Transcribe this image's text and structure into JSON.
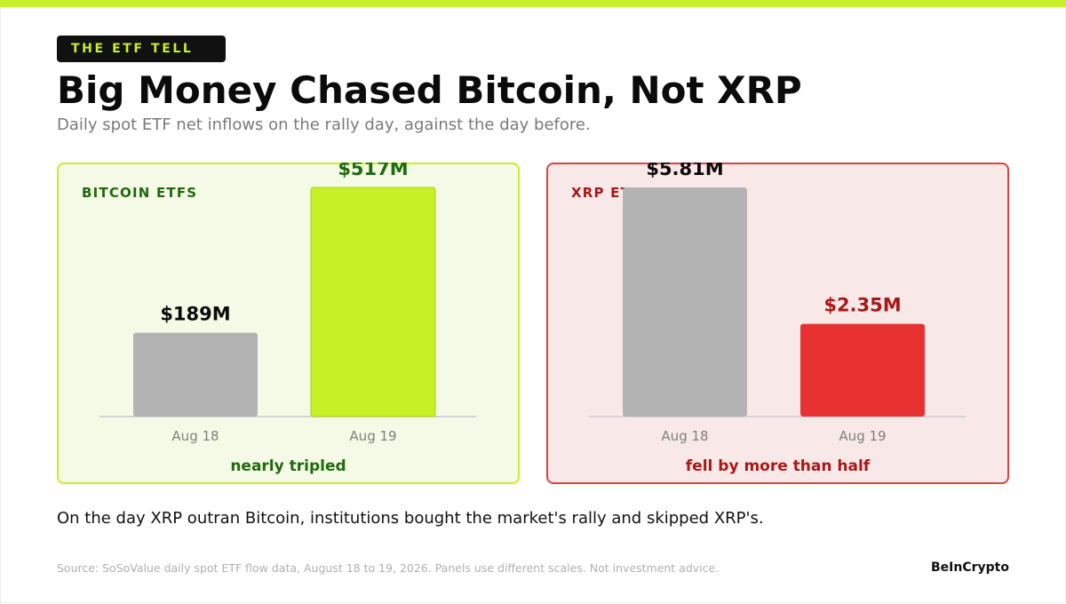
{
  "colors": {
    "accent": "#c8f026",
    "brand_bar": "#c8f026",
    "kicker_text": "#c8f026",
    "neutral_bar": "#b3b3b3",
    "btc_green": "#1e6b0d",
    "btc_panel_bg": "#f5fae6",
    "btc_panel_border": "#c8f026",
    "xrp_red": "#e83232",
    "xrp_dark_red": "#a81818",
    "xrp_panel_bg": "#f9e8e8",
    "xrp_panel_border": "#d64545"
  },
  "header": {
    "kicker": "THE ETF TELL",
    "title": "Big Money Chased Bitcoin, Not XRP",
    "subtitle": "Daily spot ETF net inflows on the rally day, against the day before."
  },
  "chart_data": [
    {
      "type": "bar",
      "panel_label": "BITCOIN ETFS",
      "categories": [
        "Aug 18",
        "Aug 19"
      ],
      "values": [
        189,
        517
      ],
      "value_labels": [
        "$189M",
        "$517M"
      ],
      "unit": "$M",
      "ylim": [
        0,
        517
      ],
      "note": "nearly tripled"
    },
    {
      "type": "bar",
      "panel_label": "XRP ETFS",
      "categories": [
        "Aug 18",
        "Aug 19"
      ],
      "values": [
        5.81,
        2.35
      ],
      "value_labels": [
        "$5.81M",
        "$2.35M"
      ],
      "unit": "$M",
      "ylim": [
        0,
        5.81
      ],
      "note": "fell by more than half"
    }
  ],
  "footer": {
    "takeaway": "On the day XRP outran Bitcoin, institutions bought the market's rally and skipped XRP's.",
    "source": "Source: SoSoValue daily spot ETF flow data, August 18 to 19, 2026. Panels use different scales. Not investment advice.",
    "brand": "BeInCrypto"
  }
}
